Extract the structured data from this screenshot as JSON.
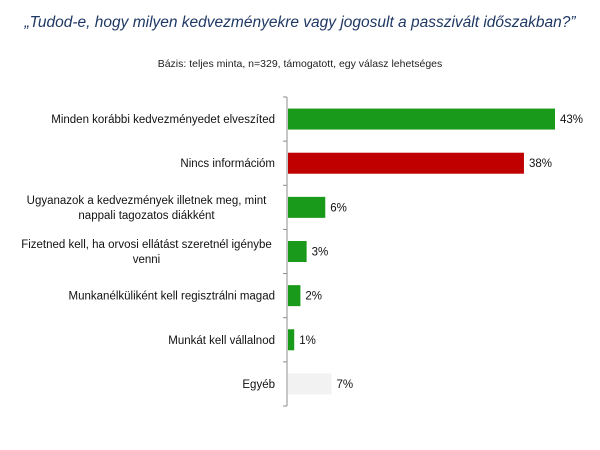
{
  "chart_data": {
    "type": "bar",
    "orientation": "horizontal",
    "title": "„Tudod-e, hogy milyen kedvezményekre vagy jogosult a passzivált időszakban?”",
    "subtitle": "Bázis: teljes minta, n=329, támogatott, egy válasz lehetséges",
    "categories": [
      [
        "Minden korábbi kedvezményedet elveszíted"
      ],
      [
        "Nincs információm"
      ],
      [
        "Ugyanazok a kedvezmények illetnek meg, mint",
        "nappali  tagozatos diákként"
      ],
      [
        "Fizetned kell, ha orvosi ellátást szeretnél igénybe",
        "venni"
      ],
      [
        "Munkanélküliként kell regisztrálni magad"
      ],
      [
        "Munkát kell vállalnod"
      ],
      [
        "Egyéb"
      ]
    ],
    "values": [
      43,
      38,
      6,
      3,
      2,
      1,
      7
    ],
    "value_labels": [
      "43%",
      "38%",
      "6%",
      "3%",
      "2%",
      "1%",
      "7%"
    ],
    "bar_colors": [
      "#1a9a1a",
      "#c00000",
      "#1a9a1a",
      "#1a9a1a",
      "#1a9a1a",
      "#1a9a1a",
      "#f2f2f2"
    ],
    "xlim": [
      0,
      43
    ],
    "grid": false,
    "legend": "none"
  }
}
